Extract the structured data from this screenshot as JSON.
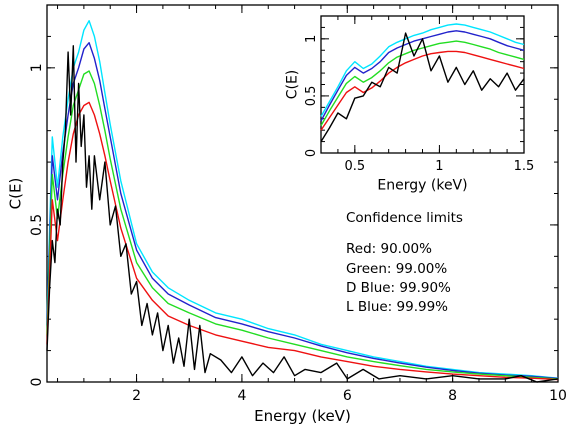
{
  "chart_data": [
    {
      "type": "line",
      "xlabel": "Energy (keV)",
      "ylabel": "C(E)",
      "xlim": [
        0.3,
        10
      ],
      "ylim": [
        0,
        1.2
      ],
      "x_ticks": [
        2,
        4,
        6,
        8,
        10
      ],
      "y_ticks": [
        0,
        0.5,
        1
      ],
      "y_tick_labels": [
        "0",
        "0.5",
        "1"
      ],
      "grid": false,
      "series": [
        {
          "color": "#00e5ff",
          "x": [
            0.3,
            0.4,
            0.5,
            0.6,
            0.7,
            0.8,
            0.9,
            1.0,
            1.1,
            1.2,
            1.3,
            1.4,
            1.5,
            1.7,
            2.0,
            2.3,
            2.6,
            3.0,
            3.5,
            4.0,
            4.5,
            5.0,
            5.5,
            6.0,
            6.5,
            7.0,
            7.5,
            8.0,
            8.5,
            9.0,
            9.5,
            10.0
          ],
          "y": [
            0.2,
            0.78,
            0.62,
            0.78,
            0.9,
            1.0,
            1.05,
            1.12,
            1.15,
            1.1,
            1.02,
            0.92,
            0.82,
            0.64,
            0.44,
            0.35,
            0.3,
            0.26,
            0.22,
            0.2,
            0.17,
            0.15,
            0.12,
            0.1,
            0.08,
            0.065,
            0.05,
            0.04,
            0.03,
            0.025,
            0.02,
            0.012
          ]
        },
        {
          "color": "#2222cc",
          "x": [
            0.3,
            0.4,
            0.5,
            0.6,
            0.7,
            0.8,
            0.9,
            1.0,
            1.1,
            1.2,
            1.3,
            1.4,
            1.5,
            1.7,
            2.0,
            2.3,
            2.6,
            3.0,
            3.5,
            4.0,
            4.5,
            5.0,
            5.5,
            6.0,
            6.5,
            7.0,
            7.5,
            8.0,
            8.5,
            9.0,
            9.5,
            10.0
          ],
          "y": [
            0.18,
            0.72,
            0.58,
            0.73,
            0.85,
            0.95,
            1.0,
            1.06,
            1.08,
            1.03,
            0.96,
            0.87,
            0.78,
            0.6,
            0.42,
            0.33,
            0.28,
            0.245,
            0.205,
            0.185,
            0.16,
            0.14,
            0.115,
            0.093,
            0.075,
            0.06,
            0.047,
            0.037,
            0.028,
            0.022,
            0.018,
            0.011
          ]
        },
        {
          "color": "#22dd22",
          "x": [
            0.3,
            0.4,
            0.5,
            0.6,
            0.7,
            0.8,
            0.9,
            1.0,
            1.1,
            1.2,
            1.3,
            1.4,
            1.5,
            1.7,
            2.0,
            2.3,
            2.6,
            3.0,
            3.5,
            4.0,
            4.5,
            5.0,
            5.5,
            6.0,
            6.5,
            7.0,
            7.5,
            8.0,
            8.5,
            9.0,
            9.5,
            10.0
          ],
          "y": [
            0.15,
            0.66,
            0.52,
            0.66,
            0.78,
            0.88,
            0.93,
            0.98,
            0.99,
            0.95,
            0.88,
            0.8,
            0.71,
            0.55,
            0.38,
            0.3,
            0.25,
            0.22,
            0.185,
            0.165,
            0.14,
            0.12,
            0.1,
            0.08,
            0.065,
            0.052,
            0.04,
            0.032,
            0.025,
            0.02,
            0.015,
            0.01
          ]
        },
        {
          "color": "#ee1111",
          "x": [
            0.3,
            0.4,
            0.5,
            0.6,
            0.7,
            0.8,
            0.9,
            1.0,
            1.1,
            1.2,
            1.3,
            1.4,
            1.5,
            1.7,
            2.0,
            2.3,
            2.6,
            3.0,
            3.5,
            4.0,
            4.5,
            5.0,
            5.5,
            6.0,
            6.5,
            7.0,
            7.5,
            8.0,
            8.5,
            9.0,
            9.5,
            10.0
          ],
          "y": [
            0.12,
            0.58,
            0.45,
            0.58,
            0.7,
            0.79,
            0.85,
            0.88,
            0.89,
            0.85,
            0.79,
            0.72,
            0.64,
            0.49,
            0.33,
            0.26,
            0.21,
            0.18,
            0.15,
            0.13,
            0.11,
            0.1,
            0.08,
            0.065,
            0.05,
            0.04,
            0.032,
            0.025,
            0.02,
            0.015,
            0.012,
            0.008
          ]
        },
        {
          "color": "#000000",
          "x": [
            0.3,
            0.35,
            0.4,
            0.45,
            0.5,
            0.55,
            0.6,
            0.65,
            0.7,
            0.75,
            0.8,
            0.85,
            0.9,
            0.95,
            1.0,
            1.05,
            1.1,
            1.15,
            1.2,
            1.3,
            1.4,
            1.5,
            1.6,
            1.7,
            1.8,
            1.9,
            2.0,
            2.1,
            2.2,
            2.3,
            2.4,
            2.5,
            2.6,
            2.7,
            2.8,
            2.9,
            3.0,
            3.1,
            3.2,
            3.3,
            3.4,
            3.6,
            3.8,
            4.0,
            4.2,
            4.4,
            4.6,
            4.8,
            5.0,
            5.2,
            5.5,
            5.8,
            6.0,
            6.3,
            6.6,
            7.0,
            7.5,
            8.0,
            8.5,
            9.0,
            9.3,
            9.6,
            10.0
          ],
          "y": [
            0.1,
            0.3,
            0.45,
            0.38,
            0.55,
            0.5,
            0.7,
            0.8,
            1.05,
            0.85,
            1.07,
            0.7,
            0.95,
            0.75,
            0.85,
            0.62,
            0.72,
            0.55,
            0.72,
            0.58,
            0.7,
            0.5,
            0.56,
            0.4,
            0.44,
            0.28,
            0.32,
            0.18,
            0.25,
            0.15,
            0.22,
            0.1,
            0.18,
            0.06,
            0.14,
            0.05,
            0.2,
            0.04,
            0.18,
            0.03,
            0.09,
            0.07,
            0.03,
            0.08,
            0.02,
            0.06,
            0.03,
            0.08,
            0.02,
            0.04,
            0.03,
            0.06,
            0.01,
            0.04,
            0.01,
            0.02,
            0.01,
            0.02,
            0.01,
            0.01,
            0.02,
            0.0,
            0.01
          ]
        }
      ]
    },
    {
      "type": "line",
      "xlabel": "Energy (keV)",
      "ylabel": "C(E)",
      "xlim": [
        0.3,
        1.5
      ],
      "ylim": [
        0,
        1.2
      ],
      "x_ticks": [
        0.5,
        1,
        1.5
      ],
      "x_tick_labels": [
        "0.5",
        "1",
        "1.5"
      ],
      "y_ticks": [
        0,
        0.5,
        1
      ],
      "y_tick_labels": [
        "0",
        "0.5",
        "1"
      ],
      "grid": false,
      "series": [
        {
          "color": "#00e5ff",
          "x": [
            0.3,
            0.35,
            0.4,
            0.45,
            0.5,
            0.55,
            0.6,
            0.65,
            0.7,
            0.75,
            0.8,
            0.85,
            0.9,
            0.95,
            1.0,
            1.05,
            1.1,
            1.15,
            1.2,
            1.25,
            1.3,
            1.35,
            1.4,
            1.45,
            1.5
          ],
          "y": [
            0.32,
            0.45,
            0.58,
            0.72,
            0.8,
            0.74,
            0.78,
            0.85,
            0.93,
            0.97,
            1.0,
            1.03,
            1.05,
            1.08,
            1.1,
            1.12,
            1.13,
            1.12,
            1.1,
            1.08,
            1.06,
            1.03,
            1.0,
            0.97,
            0.95
          ]
        },
        {
          "color": "#2222cc",
          "x": [
            0.3,
            0.35,
            0.4,
            0.45,
            0.5,
            0.55,
            0.6,
            0.65,
            0.7,
            0.75,
            0.8,
            0.85,
            0.9,
            0.95,
            1.0,
            1.05,
            1.1,
            1.15,
            1.2,
            1.25,
            1.3,
            1.35,
            1.4,
            1.45,
            1.5
          ],
          "y": [
            0.28,
            0.42,
            0.55,
            0.68,
            0.75,
            0.7,
            0.74,
            0.8,
            0.88,
            0.92,
            0.95,
            0.98,
            1.0,
            1.02,
            1.04,
            1.06,
            1.07,
            1.06,
            1.04,
            1.02,
            1.0,
            0.97,
            0.94,
            0.92,
            0.9
          ]
        },
        {
          "color": "#22dd22",
          "x": [
            0.3,
            0.35,
            0.4,
            0.45,
            0.5,
            0.55,
            0.6,
            0.65,
            0.7,
            0.75,
            0.8,
            0.85,
            0.9,
            0.95,
            1.0,
            1.05,
            1.1,
            1.15,
            1.2,
            1.25,
            1.3,
            1.35,
            1.4,
            1.45,
            1.5
          ],
          "y": [
            0.24,
            0.37,
            0.49,
            0.61,
            0.67,
            0.62,
            0.66,
            0.72,
            0.79,
            0.84,
            0.87,
            0.9,
            0.92,
            0.94,
            0.96,
            0.97,
            0.98,
            0.97,
            0.95,
            0.93,
            0.91,
            0.88,
            0.86,
            0.84,
            0.82
          ]
        },
        {
          "color": "#ee1111",
          "x": [
            0.3,
            0.35,
            0.4,
            0.45,
            0.5,
            0.55,
            0.6,
            0.65,
            0.7,
            0.75,
            0.8,
            0.85,
            0.9,
            0.95,
            1.0,
            1.05,
            1.1,
            1.15,
            1.2,
            1.25,
            1.3,
            1.35,
            1.4,
            1.45,
            1.5
          ],
          "y": [
            0.2,
            0.31,
            0.42,
            0.53,
            0.58,
            0.53,
            0.57,
            0.63,
            0.7,
            0.75,
            0.79,
            0.82,
            0.85,
            0.87,
            0.88,
            0.89,
            0.89,
            0.88,
            0.86,
            0.84,
            0.82,
            0.8,
            0.78,
            0.76,
            0.74
          ]
        },
        {
          "color": "#000000",
          "x": [
            0.3,
            0.35,
            0.4,
            0.45,
            0.5,
            0.55,
            0.6,
            0.65,
            0.7,
            0.75,
            0.8,
            0.85,
            0.9,
            0.95,
            1.0,
            1.05,
            1.1,
            1.15,
            1.2,
            1.25,
            1.3,
            1.35,
            1.4,
            1.45,
            1.5
          ],
          "y": [
            0.1,
            0.22,
            0.35,
            0.3,
            0.48,
            0.5,
            0.62,
            0.58,
            0.75,
            0.7,
            1.05,
            0.85,
            1.0,
            0.72,
            0.85,
            0.62,
            0.75,
            0.6,
            0.72,
            0.55,
            0.65,
            0.58,
            0.7,
            0.55,
            0.65
          ]
        }
      ]
    }
  ],
  "legend": {
    "heading": "Confidence limits",
    "entries": [
      {
        "label": "Red: 90.00%",
        "color": "#ee1111"
      },
      {
        "label": "Green: 99.00%",
        "color": "#22dd22"
      },
      {
        "label": "D Blue: 99.90%",
        "color": "#2222cc"
      },
      {
        "label": "L Blue: 99.99%",
        "color": "#00e5ff"
      }
    ]
  }
}
